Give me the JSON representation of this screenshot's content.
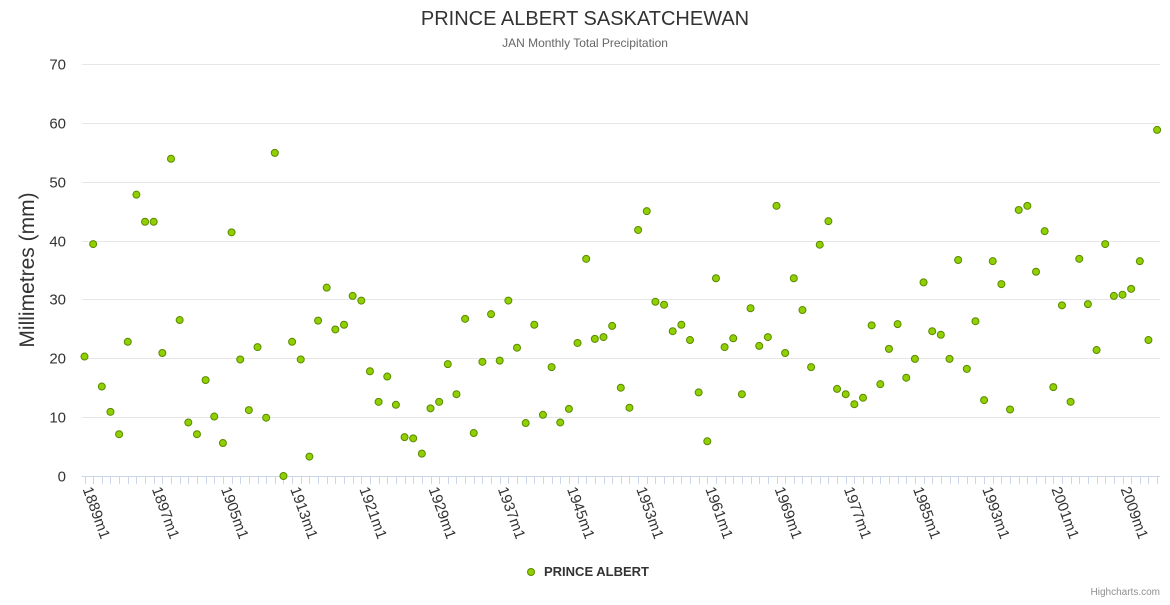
{
  "credits": "Highcharts.com",
  "chart_data": {
    "type": "scatter",
    "title": "PRINCE ALBERT SASKATCHEWAN",
    "subtitle": "JAN Monthly Total Precipitation",
    "xlabel": "",
    "ylabel": "Millimetres (mm)",
    "ylim": [
      0,
      70
    ],
    "yticks": [
      0,
      10,
      20,
      30,
      40,
      50,
      60,
      70
    ],
    "x_tick_labels": [
      "1889m1",
      "1897m1",
      "1905m1",
      "1913m1",
      "1921m1",
      "1929m1",
      "1937m1",
      "1945m1",
      "1953m1",
      "1961m1",
      "1969m1",
      "1977m1",
      "1985m1",
      "1993m1",
      "2001m1",
      "2009m1"
    ],
    "grid": true,
    "legend_position": "bottom-center",
    "series": [
      {
        "name": "PRINCE ALBERT",
        "color": "#7cb500",
        "marker_fill": "#90d000",
        "marker_stroke": "#5a8a00",
        "points": [
          [
            "1889m1",
            20.3
          ],
          [
            "1890m1",
            39.4
          ],
          [
            "1891m1",
            15.2
          ],
          [
            "1892m1",
            10.9
          ],
          [
            "1893m1",
            7.1
          ],
          [
            "1894m1",
            22.8
          ],
          [
            "1895m1",
            47.8
          ],
          [
            "1896m1",
            43.2
          ],
          [
            "1897m1",
            43.2
          ],
          [
            "1898m1",
            20.9
          ],
          [
            "1899m1",
            53.9
          ],
          [
            "1900m1",
            26.5
          ],
          [
            "1901m1",
            9.1
          ],
          [
            "1902m1",
            7.1
          ],
          [
            "1903m1",
            16.3
          ],
          [
            "1904m1",
            10.1
          ],
          [
            "1905m1",
            5.6
          ],
          [
            "1906m1",
            41.4
          ],
          [
            "1907m1",
            19.8
          ],
          [
            "1908m1",
            11.2
          ],
          [
            "1909m1",
            21.9
          ],
          [
            "1910m1",
            9.9
          ],
          [
            "1911m1",
            54.9
          ],
          [
            "1912m1",
            0.0
          ],
          [
            "1913m1",
            22.8
          ],
          [
            "1914m1",
            19.8
          ],
          [
            "1915m1",
            3.3
          ],
          [
            "1916m1",
            26.4
          ],
          [
            "1917m1",
            32.0
          ],
          [
            "1918m1",
            24.9
          ],
          [
            "1919m1",
            25.7
          ],
          [
            "1920m1",
            30.6
          ],
          [
            "1921m1",
            29.8
          ],
          [
            "1922m1",
            17.8
          ],
          [
            "1923m1",
            12.6
          ],
          [
            "1924m1",
            16.9
          ],
          [
            "1925m1",
            12.1
          ],
          [
            "1926m1",
            6.6
          ],
          [
            "1927m1",
            6.4
          ],
          [
            "1928m1",
            3.8
          ],
          [
            "1929m1",
            11.5
          ],
          [
            "1930m1",
            12.6
          ],
          [
            "1931m1",
            19.0
          ],
          [
            "1932m1",
            13.9
          ],
          [
            "1933m1",
            26.7
          ],
          [
            "1934m1",
            7.3
          ],
          [
            "1935m1",
            19.4
          ],
          [
            "1936m1",
            27.5
          ],
          [
            "1937m1",
            19.6
          ],
          [
            "1938m1",
            29.8
          ],
          [
            "1939m1",
            21.8
          ],
          [
            "1940m1",
            9.0
          ],
          [
            "1941m1",
            25.7
          ],
          [
            "1942m1",
            10.4
          ],
          [
            "1943m1",
            18.5
          ],
          [
            "1944m1",
            9.1
          ],
          [
            "1945m1",
            11.4
          ],
          [
            "1946m1",
            22.6
          ],
          [
            "1947m1",
            36.9
          ],
          [
            "1948m1",
            23.3
          ],
          [
            "1949m1",
            23.6
          ],
          [
            "1950m1",
            25.5
          ],
          [
            "1951m1",
            15.0
          ],
          [
            "1952m1",
            11.6
          ],
          [
            "1953m1",
            41.8
          ],
          [
            "1954m1",
            45.0
          ],
          [
            "1955m1",
            29.6
          ],
          [
            "1956m1",
            29.1
          ],
          [
            "1957m1",
            24.6
          ],
          [
            "1958m1",
            25.7
          ],
          [
            "1959m1",
            23.1
          ],
          [
            "1960m1",
            14.2
          ],
          [
            "1961m1",
            5.9
          ],
          [
            "1962m1",
            33.6
          ],
          [
            "1963m1",
            21.9
          ],
          [
            "1964m1",
            23.4
          ],
          [
            "1965m1",
            13.9
          ],
          [
            "1966m1",
            28.5
          ],
          [
            "1967m1",
            22.1
          ],
          [
            "1968m1",
            23.6
          ],
          [
            "1969m1",
            45.9
          ],
          [
            "1970m1",
            20.9
          ],
          [
            "1971m1",
            33.6
          ],
          [
            "1972m1",
            28.2
          ],
          [
            "1973m1",
            18.5
          ],
          [
            "1974m1",
            39.3
          ],
          [
            "1975m1",
            43.3
          ],
          [
            "1976m1",
            14.8
          ],
          [
            "1977m1",
            13.9
          ],
          [
            "1978m1",
            12.2
          ],
          [
            "1979m1",
            13.3
          ],
          [
            "1980m1",
            25.6
          ],
          [
            "1981m1",
            15.6
          ],
          [
            "1982m1",
            21.6
          ],
          [
            "1983m1",
            25.8
          ],
          [
            "1984m1",
            16.7
          ],
          [
            "1985m1",
            19.9
          ],
          [
            "1986m1",
            32.9
          ],
          [
            "1987m1",
            24.6
          ],
          [
            "1988m1",
            24.0
          ],
          [
            "1989m1",
            19.9
          ],
          [
            "1990m1",
            36.7
          ],
          [
            "1991m1",
            18.2
          ],
          [
            "1992m1",
            26.3
          ],
          [
            "1993m1",
            12.9
          ],
          [
            "1994m1",
            36.5
          ],
          [
            "1995m1",
            32.6
          ],
          [
            "1996m1",
            11.3
          ],
          [
            "1997m1",
            45.2
          ],
          [
            "1998m1",
            45.9
          ],
          [
            "1999m1",
            34.7
          ],
          [
            "2000m1",
            41.6
          ],
          [
            "2001m1",
            15.1
          ],
          [
            "2002m1",
            29.0
          ],
          [
            "2003m1",
            12.6
          ],
          [
            "2004m1",
            36.9
          ],
          [
            "2005m1",
            29.2
          ],
          [
            "2006m1",
            21.4
          ],
          [
            "2007m1",
            39.4
          ],
          [
            "2008m1",
            30.6
          ],
          [
            "2009m1",
            30.8
          ],
          [
            "2010m1",
            31.8
          ],
          [
            "2011m1",
            36.5
          ],
          [
            "2012m1",
            23.1
          ],
          [
            "2013m1",
            58.8
          ]
        ]
      }
    ]
  }
}
